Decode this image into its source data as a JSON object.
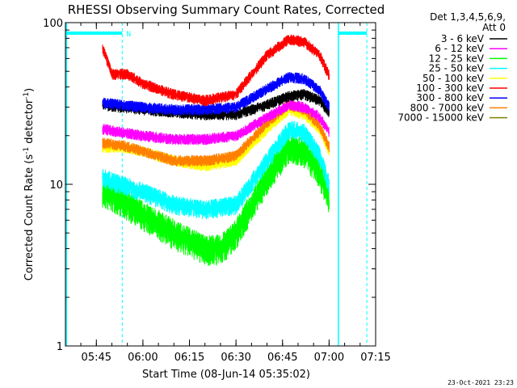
{
  "chart_data": {
    "type": "line",
    "title": "RHESSI Observing Summary Count Rates, Corrected",
    "xlabel": "Start Time (08-Jun-14 05:35:02)",
    "ylabel": "Corrected Count Rate (s⁻¹ detector⁻¹)",
    "ylabel_main": "Corrected Count Rate (s",
    "ylabel_mid": " detector",
    "ylabel_end": ")",
    "ylabel_sup": "-1",
    "yscale": "log",
    "ylim": [
      1,
      100
    ],
    "xlim": [
      "05:35:02",
      "07:15:00"
    ],
    "x_ticks": [
      "05:45",
      "06:00",
      "06:15",
      "06:30",
      "06:45",
      "07:00",
      "07:15"
    ],
    "y_ticks": [
      "1",
      "10",
      "100"
    ],
    "legend_header": [
      "Det 1,3,4,5,6,9,",
      "Att 0"
    ],
    "legend_position": "right",
    "footer": "23-Oct-2021 23:23",
    "flag_label": "N",
    "flag_markers": [
      {
        "type": "night",
        "x_start": "05:35:02",
        "x_end": "05:53:20"
      },
      {
        "type": "night",
        "x_start": "07:03:00",
        "x_end": "07:12:10"
      }
    ],
    "series": [
      {
        "name": "3 - 6 keV",
        "color": "#000000",
        "x": [
          "05:47",
          "05:53",
          "06:00",
          "06:10",
          "06:20",
          "06:30",
          "06:40",
          "06:47",
          "06:52",
          "06:57",
          "07:00"
        ],
        "values": [
          31,
          30,
          29,
          28,
          27,
          27,
          31,
          35,
          36,
          33,
          28
        ]
      },
      {
        "name": "6 - 12 keV",
        "color": "#ff00ff",
        "x": [
          "05:47",
          "05:53",
          "06:00",
          "06:10",
          "06:20",
          "06:30",
          "06:40",
          "06:47",
          "06:52",
          "06:57",
          "07:00"
        ],
        "values": [
          22,
          21,
          20,
          19,
          19,
          20,
          26,
          31,
          30,
          26,
          21
        ]
      },
      {
        "name": "12 - 25 keV",
        "color": "#00ff00",
        "x": [
          "05:47",
          "05:53",
          "06:00",
          "06:10",
          "06:20",
          "06:25",
          "06:30",
          "06:40",
          "06:47",
          "06:52",
          "06:57",
          "07:00"
        ],
        "values": [
          9,
          8,
          6.5,
          5,
          4,
          4,
          5,
          11,
          17,
          16,
          12,
          8
        ]
      },
      {
        "name": "25 - 50 keV",
        "color": "#00ffff",
        "x": [
          "05:47",
          "05:53",
          "06:00",
          "06:10",
          "06:20",
          "06:30",
          "06:40",
          "06:47",
          "06:52",
          "06:57",
          "07:00"
        ],
        "values": [
          11,
          10,
          9,
          7.5,
          7,
          7.5,
          14,
          22,
          21,
          15,
          10
        ]
      },
      {
        "name": "50 - 100 keV",
        "color": "#ffff00",
        "x": [
          "05:47",
          "05:53",
          "06:00",
          "06:10",
          "06:20",
          "06:30",
          "06:40",
          "06:47",
          "06:52",
          "06:57",
          "07:00"
        ],
        "values": [
          17,
          17,
          16,
          14,
          13,
          14,
          22,
          29,
          27,
          22,
          16
        ]
      },
      {
        "name": "100 - 300 keV",
        "color": "#ff0000",
        "x": [
          "05:47",
          "05:50",
          "05:55",
          "06:00",
          "06:10",
          "06:20",
          "06:30",
          "06:40",
          "06:47",
          "06:52",
          "06:57",
          "07:00"
        ],
        "values": [
          70,
          48,
          48,
          42,
          36,
          33,
          36,
          63,
          79,
          76,
          63,
          47
        ]
      },
      {
        "name": "300 - 800 keV",
        "color": "#0000ff",
        "x": [
          "05:47",
          "05:53",
          "06:00",
          "06:10",
          "06:20",
          "06:30",
          "06:40",
          "06:47",
          "06:52",
          "06:57",
          "07:00"
        ],
        "values": [
          32,
          31,
          30,
          29,
          29,
          30,
          39,
          46,
          45,
          38,
          30
        ]
      },
      {
        "name": "800 - 7000 keV",
        "color": "#ff8000",
        "x": [
          "05:47",
          "05:53",
          "06:00",
          "06:10",
          "06:20",
          "06:30",
          "06:40",
          "06:47",
          "06:52",
          "06:57",
          "07:00"
        ],
        "values": [
          18,
          17.5,
          16,
          14,
          14,
          15,
          24,
          31,
          29,
          23,
          17
        ]
      },
      {
        "name": "7000 - 15000 keV",
        "color": "#808000",
        "x": [],
        "values": []
      }
    ]
  }
}
